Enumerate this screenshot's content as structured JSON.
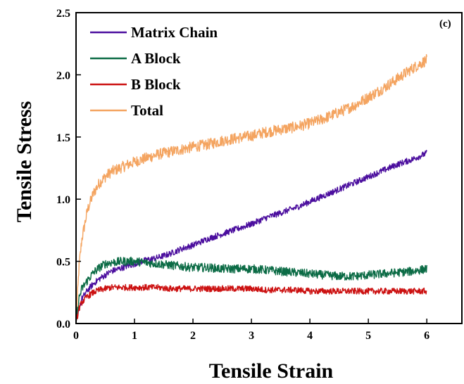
{
  "chart_data": {
    "type": "line",
    "panel_label": "(c)",
    "title": "",
    "xlabel": "Tensile Strain",
    "ylabel": "Tensile Stress",
    "xlim": [
      0,
      6.6
    ],
    "ylim": [
      0,
      2.5
    ],
    "xticks": [
      0,
      1,
      2,
      3,
      4,
      5,
      6
    ],
    "yticks": [
      0.0,
      0.5,
      1.0,
      1.5,
      2.0,
      2.5
    ],
    "xtick_labels": [
      "0",
      "1",
      "2",
      "3",
      "4",
      "5",
      "6"
    ],
    "ytick_labels": [
      "0.0",
      "0.5",
      "1.0",
      "1.5",
      "2.0",
      "2.5"
    ],
    "grid": false,
    "legend_position": "top-left",
    "x": [
      0,
      0.05,
      0.1,
      0.2,
      0.3,
      0.4,
      0.5,
      0.6,
      0.8,
      1.0,
      1.2,
      1.4,
      1.6,
      1.8,
      2.0,
      2.25,
      2.5,
      2.75,
      3.0,
      3.25,
      3.5,
      3.75,
      4.0,
      4.25,
      4.5,
      4.75,
      5.0,
      5.25,
      5.5,
      5.75,
      6.0
    ],
    "series": [
      {
        "name": "Matrix Chain",
        "color": "#4B0E9E",
        "noise": 0.025,
        "values": [
          0.0,
          0.12,
          0.2,
          0.27,
          0.32,
          0.36,
          0.39,
          0.42,
          0.45,
          0.48,
          0.51,
          0.53,
          0.56,
          0.6,
          0.63,
          0.68,
          0.72,
          0.76,
          0.8,
          0.85,
          0.89,
          0.93,
          0.98,
          1.03,
          1.08,
          1.13,
          1.18,
          1.23,
          1.28,
          1.32,
          1.37
        ]
      },
      {
        "name": "A Block",
        "color": "#0B6B45",
        "noise": 0.035,
        "values": [
          0.0,
          0.2,
          0.28,
          0.35,
          0.41,
          0.45,
          0.48,
          0.49,
          0.5,
          0.5,
          0.49,
          0.48,
          0.47,
          0.46,
          0.45,
          0.45,
          0.44,
          0.44,
          0.44,
          0.43,
          0.42,
          0.41,
          0.4,
          0.39,
          0.38,
          0.38,
          0.39,
          0.4,
          0.41,
          0.42,
          0.44
        ]
      },
      {
        "name": "B Block",
        "color": "#CC1111",
        "noise": 0.025,
        "values": [
          0.0,
          0.12,
          0.17,
          0.22,
          0.25,
          0.27,
          0.28,
          0.29,
          0.29,
          0.29,
          0.29,
          0.29,
          0.28,
          0.28,
          0.28,
          0.28,
          0.28,
          0.28,
          0.28,
          0.27,
          0.27,
          0.27,
          0.26,
          0.26,
          0.26,
          0.26,
          0.26,
          0.26,
          0.26,
          0.26,
          0.26
        ]
      },
      {
        "name": "Total",
        "color": "#F4A460",
        "noise": 0.045,
        "values": [
          0.0,
          0.45,
          0.68,
          0.92,
          1.05,
          1.13,
          1.18,
          1.22,
          1.26,
          1.3,
          1.33,
          1.36,
          1.38,
          1.4,
          1.42,
          1.44,
          1.47,
          1.49,
          1.51,
          1.54,
          1.56,
          1.58,
          1.61,
          1.65,
          1.7,
          1.75,
          1.82,
          1.89,
          1.97,
          2.05,
          2.12
        ]
      }
    ]
  }
}
